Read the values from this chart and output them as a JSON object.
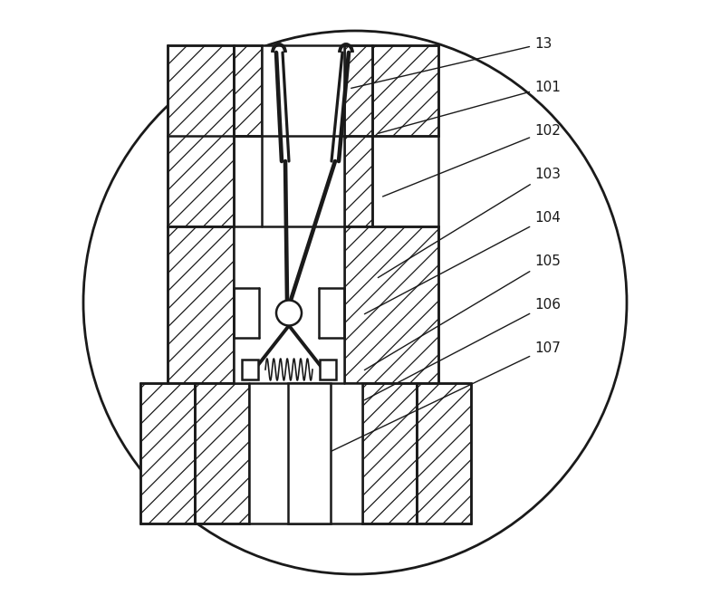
{
  "fig_width": 7.85,
  "fig_height": 6.68,
  "dpi": 100,
  "bg_color": "#ffffff",
  "line_color": "#1a1a1a"
}
